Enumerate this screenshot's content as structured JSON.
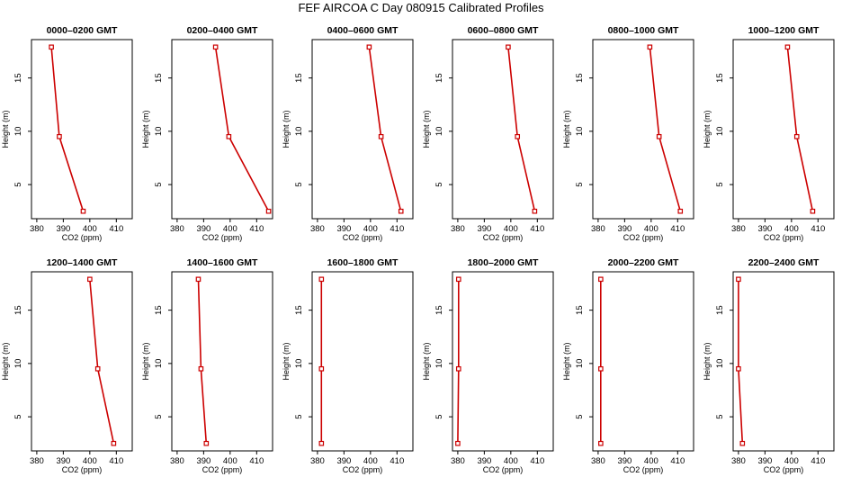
{
  "title": "FEF AIRCOA C  Day 080915  Calibrated Profiles",
  "colors": {
    "line": "#cc0000",
    "axis": "#000000"
  },
  "chart_data": [
    {
      "type": "line",
      "title": "0000–0200 GMT",
      "xlabel": "CO2 (ppm)",
      "ylabel": "Height (m)",
      "xlim": [
        378,
        416
      ],
      "ylim": [
        1.8,
        18.6
      ],
      "xticks": [
        380,
        390,
        400,
        410
      ],
      "yticks": [
        5,
        10,
        15
      ],
      "points": [
        {
          "x": 397.5,
          "y": 2.5
        },
        {
          "x": 388.5,
          "y": 9.5
        },
        {
          "x": 385.5,
          "y": 17.9
        }
      ]
    },
    {
      "type": "line",
      "title": "0200–0400 GMT",
      "xlabel": "CO2 (ppm)",
      "ylabel": "Height (m)",
      "xlim": [
        378,
        416
      ],
      "ylim": [
        1.8,
        18.6
      ],
      "xticks": [
        380,
        390,
        400,
        410
      ],
      "yticks": [
        5,
        10,
        15
      ],
      "points": [
        {
          "x": 414.5,
          "y": 2.5
        },
        {
          "x": 399.5,
          "y": 9.5
        },
        {
          "x": 394.5,
          "y": 17.9
        }
      ]
    },
    {
      "type": "line",
      "title": "0400–0600 GMT",
      "xlabel": "CO2 (ppm)",
      "ylabel": "Height (m)",
      "xlim": [
        378,
        416
      ],
      "ylim": [
        1.8,
        18.6
      ],
      "xticks": [
        380,
        390,
        400,
        410
      ],
      "yticks": [
        5,
        10,
        15
      ],
      "points": [
        {
          "x": 411.5,
          "y": 2.5
        },
        {
          "x": 404.0,
          "y": 9.5
        },
        {
          "x": 399.5,
          "y": 17.9
        }
      ]
    },
    {
      "type": "line",
      "title": "0600–0800 GMT",
      "xlabel": "CO2 (ppm)",
      "ylabel": "Height (m)",
      "xlim": [
        378,
        416
      ],
      "ylim": [
        1.8,
        18.6
      ],
      "xticks": [
        380,
        390,
        400,
        410
      ],
      "yticks": [
        5,
        10,
        15
      ],
      "points": [
        {
          "x": 409.0,
          "y": 2.5
        },
        {
          "x": 402.5,
          "y": 9.5
        },
        {
          "x": 399.0,
          "y": 17.9
        }
      ]
    },
    {
      "type": "line",
      "title": "0800–1000 GMT",
      "xlabel": "CO2 (ppm)",
      "ylabel": "Height (m)",
      "xlim": [
        378,
        416
      ],
      "ylim": [
        1.8,
        18.6
      ],
      "xticks": [
        380,
        390,
        400,
        410
      ],
      "yticks": [
        5,
        10,
        15
      ],
      "points": [
        {
          "x": 411.0,
          "y": 2.5
        },
        {
          "x": 403.0,
          "y": 9.5
        },
        {
          "x": 399.5,
          "y": 17.9
        }
      ]
    },
    {
      "type": "line",
      "title": "1000–1200 GMT",
      "xlabel": "CO2 (ppm)",
      "ylabel": "Height (m)",
      "xlim": [
        378,
        416
      ],
      "ylim": [
        1.8,
        18.6
      ],
      "xticks": [
        380,
        390,
        400,
        410
      ],
      "yticks": [
        5,
        10,
        15
      ],
      "points": [
        {
          "x": 408.0,
          "y": 2.5
        },
        {
          "x": 402.0,
          "y": 9.5
        },
        {
          "x": 398.5,
          "y": 17.9
        }
      ]
    },
    {
      "type": "line",
      "title": "1200–1400 GMT",
      "xlabel": "CO2 (ppm)",
      "ylabel": "Height (m)",
      "xlim": [
        378,
        416
      ],
      "ylim": [
        1.8,
        18.6
      ],
      "xticks": [
        380,
        390,
        400,
        410
      ],
      "yticks": [
        5,
        10,
        15
      ],
      "points": [
        {
          "x": 409.0,
          "y": 2.5
        },
        {
          "x": 403.0,
          "y": 9.5
        },
        {
          "x": 400.0,
          "y": 17.9
        }
      ]
    },
    {
      "type": "line",
      "title": "1400–1600 GMT",
      "xlabel": "CO2 (ppm)",
      "ylabel": "Height (m)",
      "xlim": [
        378,
        416
      ],
      "ylim": [
        1.8,
        18.6
      ],
      "xticks": [
        380,
        390,
        400,
        410
      ],
      "yticks": [
        5,
        10,
        15
      ],
      "points": [
        {
          "x": 391.0,
          "y": 2.5
        },
        {
          "x": 389.0,
          "y": 9.5
        },
        {
          "x": 388.0,
          "y": 17.9
        }
      ]
    },
    {
      "type": "line",
      "title": "1600–1800 GMT",
      "xlabel": "CO2 (ppm)",
      "ylabel": "Height (m)",
      "xlim": [
        378,
        416
      ],
      "ylim": [
        1.8,
        18.6
      ],
      "xticks": [
        380,
        390,
        400,
        410
      ],
      "yticks": [
        5,
        10,
        15
      ],
      "points": [
        {
          "x": 381.5,
          "y": 2.5
        },
        {
          "x": 381.5,
          "y": 9.5
        },
        {
          "x": 381.5,
          "y": 17.9
        }
      ]
    },
    {
      "type": "line",
      "title": "1800–2000 GMT",
      "xlabel": "CO2 (ppm)",
      "ylabel": "Height (m)",
      "xlim": [
        378,
        416
      ],
      "ylim": [
        1.8,
        18.6
      ],
      "xticks": [
        380,
        390,
        400,
        410
      ],
      "yticks": [
        5,
        10,
        15
      ],
      "points": [
        {
          "x": 380.0,
          "y": 2.5
        },
        {
          "x": 380.3,
          "y": 9.5
        },
        {
          "x": 380.3,
          "y": 17.9
        }
      ]
    },
    {
      "type": "line",
      "title": "2000–2200 GMT",
      "xlabel": "CO2 (ppm)",
      "ylabel": "Height (m)",
      "xlim": [
        378,
        416
      ],
      "ylim": [
        1.8,
        18.6
      ],
      "xticks": [
        380,
        390,
        400,
        410
      ],
      "yticks": [
        5,
        10,
        15
      ],
      "points": [
        {
          "x": 381.0,
          "y": 2.5
        },
        {
          "x": 381.0,
          "y": 9.5
        },
        {
          "x": 381.0,
          "y": 17.9
        }
      ]
    },
    {
      "type": "line",
      "title": "2200–2400 GMT",
      "xlabel": "CO2 (ppm)",
      "ylabel": "Height (m)",
      "xlim": [
        378,
        416
      ],
      "ylim": [
        1.8,
        18.6
      ],
      "xticks": [
        380,
        390,
        400,
        410
      ],
      "yticks": [
        5,
        10,
        15
      ],
      "points": [
        {
          "x": 381.5,
          "y": 2.5
        },
        {
          "x": 380.0,
          "y": 9.5
        },
        {
          "x": 380.0,
          "y": 17.9
        }
      ]
    }
  ]
}
